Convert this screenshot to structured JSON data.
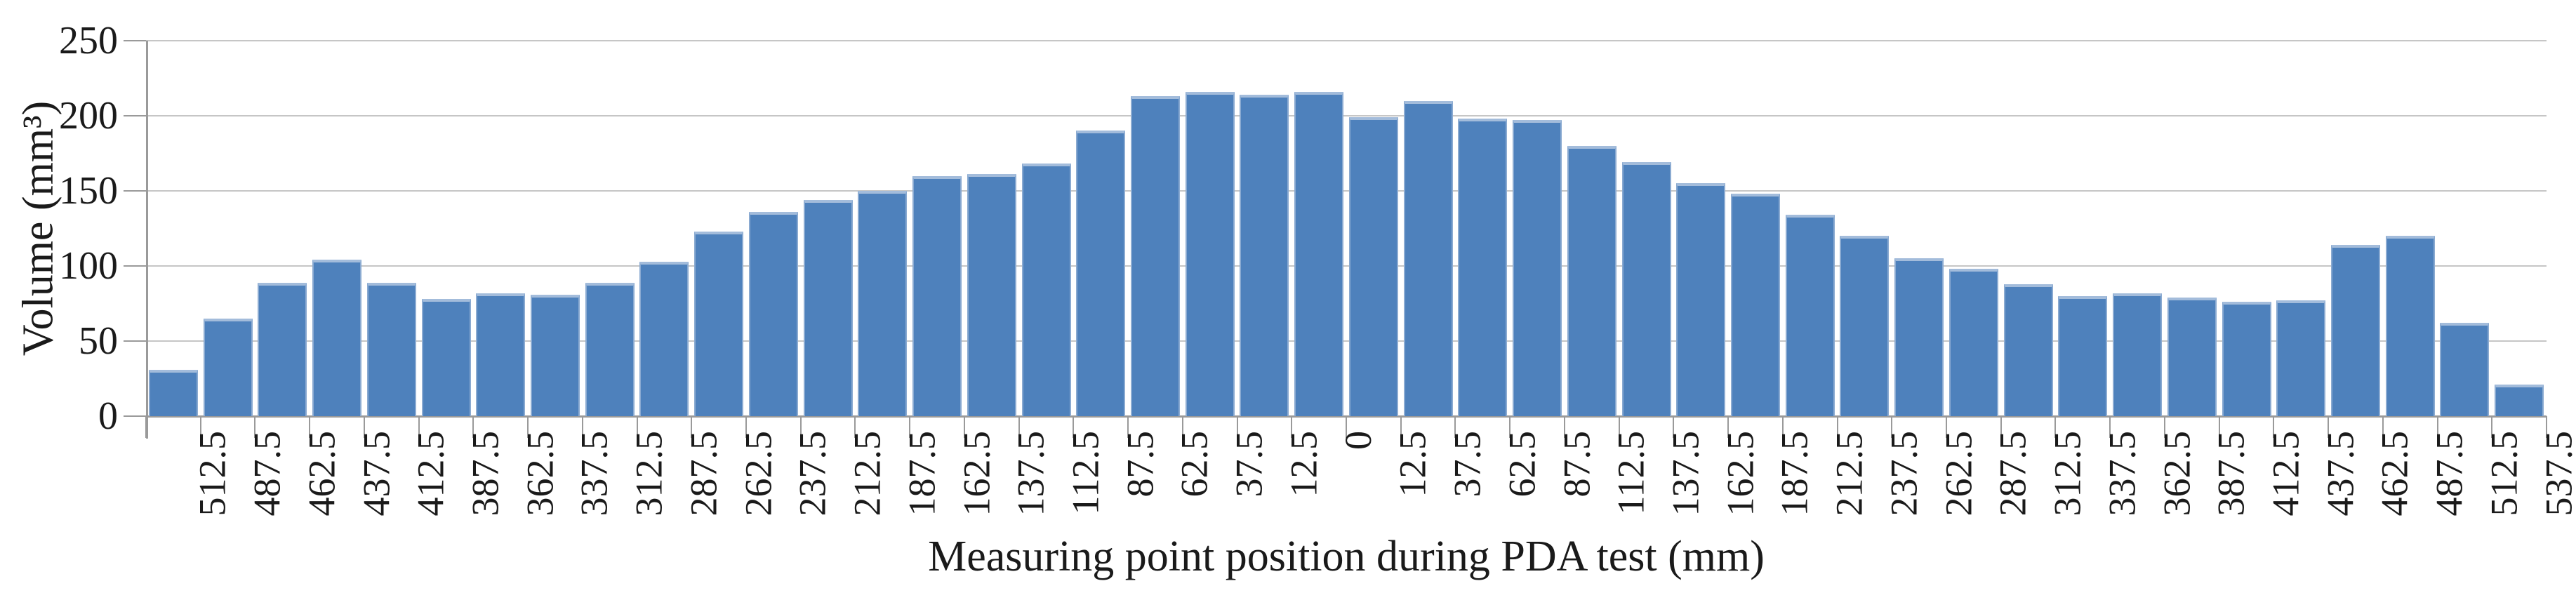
{
  "chart_data": {
    "type": "bar",
    "title": "",
    "xlabel": "Measuring point position during PDA test (mm)",
    "ylabel": "Volume (mm³)",
    "ylim": [
      0,
      250
    ],
    "yticks": [
      0,
      50,
      100,
      150,
      200,
      250
    ],
    "grid": true,
    "legend": "none",
    "categories": [
      "512.5",
      "487.5",
      "462.5",
      "437.5",
      "412.5",
      "387.5",
      "362.5",
      "337.5",
      "312.5",
      "287.5",
      "262.5",
      "237.5",
      "212.5",
      "187.5",
      "162.5",
      "137.5",
      "112.5",
      "87.5",
      "62.5",
      "37.5",
      "12.5",
      "0",
      "12.5",
      "37.5",
      "62.5",
      "87.5",
      "112.5",
      "137.5",
      "162.5",
      "187.5",
      "212.5",
      "237.5",
      "262.5",
      "287.5",
      "312.5",
      "337.5",
      "362.5",
      "387.5",
      "412.5",
      "437.5",
      "462.5",
      "487.5",
      "512.5",
      "537.5"
    ],
    "values": [
      31,
      65,
      89,
      104,
      89,
      78,
      82,
      81,
      89,
      103,
      123,
      136,
      144,
      150,
      160,
      161,
      168,
      190,
      213,
      216,
      214,
      216,
      199,
      210,
      198,
      197,
      180,
      169,
      155,
      148,
      134,
      120,
      105,
      98,
      88,
      80,
      82,
      79,
      76,
      77,
      114,
      120,
      62,
      21
    ],
    "colors": {
      "bar_fill": "#4e81bc",
      "bar_edge_top": "#a3bcdb",
      "bar_edge_side": "#8aaad1",
      "gridline": "#c6c6c6",
      "axis": "#9a9a9a",
      "text": "#1a1a1a",
      "background": "#ffffff"
    }
  }
}
